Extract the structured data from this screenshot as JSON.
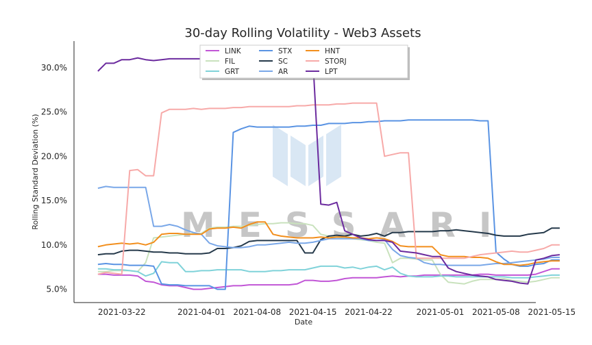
{
  "chart_data": {
    "type": "line",
    "title": "30-day Rolling Volatility - Web3 Assets",
    "xlabel": "Date",
    "ylabel": "Rolling Standard Deviation (%)",
    "ylim": [
      3.5,
      33.0
    ],
    "xlim": [
      "2021-03-16",
      "2021-05-13"
    ],
    "grid": false,
    "legend_position": "top-center",
    "watermark": "MESSARI",
    "x_tick_labels": [
      "2021-03-22",
      "2021-04-01",
      "2021-04-08",
      "2021-04-15",
      "2021-04-22",
      "2021-05-01",
      "2021-05-08",
      "2021-05-15"
    ],
    "y_tick_labels": [
      "5.0%",
      "10.0%",
      "15.0%",
      "20.0%",
      "25.0%",
      "30.0%"
    ],
    "y_tick_values": [
      5,
      10,
      15,
      20,
      25,
      30
    ],
    "x_start": "2021-03-19",
    "series": [
      {
        "name": "LINK",
        "color": "#c155d6",
        "values": [
          6.7,
          6.7,
          6.6,
          6.6,
          6.6,
          6.5,
          5.9,
          5.8,
          5.5,
          5.4,
          5.4,
          5.2,
          5.0,
          5.0,
          5.1,
          5.2,
          5.3,
          5.4,
          5.4,
          5.5,
          5.5,
          5.5,
          5.5,
          5.5,
          5.5,
          5.6,
          6.0,
          6.0,
          5.9,
          5.9,
          6.0,
          6.2,
          6.3,
          6.3,
          6.3,
          6.3,
          6.4,
          6.5,
          6.4,
          6.5,
          6.5,
          6.6,
          6.6,
          6.6,
          6.6,
          6.6,
          6.6,
          6.6,
          6.7,
          6.7,
          6.6,
          6.6,
          6.6,
          6.6,
          6.6,
          6.7,
          7.0,
          7.3,
          7.3
        ]
      },
      {
        "name": "FIL",
        "color": "#c9e2bd",
        "values": [
          7.0,
          7.0,
          7.1,
          7.1,
          7.1,
          7.0,
          8.0,
          10.8,
          10.9,
          11.0,
          11.1,
          11.2,
          11.3,
          11.3,
          11.9,
          12.0,
          12.0,
          12.1,
          12.1,
          12.2,
          12.3,
          12.4,
          12.4,
          12.5,
          12.5,
          12.4,
          12.4,
          12.2,
          11.2,
          11.0,
          10.9,
          10.8,
          10.7,
          10.6,
          10.5,
          10.3,
          10.2,
          8.0,
          8.5,
          8.5,
          8.4,
          8.3,
          8.3,
          6.7,
          5.8,
          5.7,
          5.6,
          5.9,
          6.1,
          6.1,
          6.1,
          6.2,
          6.0,
          5.9,
          5.8,
          5.9,
          6.1,
          6.3,
          6.3
        ]
      },
      {
        "name": "GRT",
        "color": "#7fd2d9",
        "values": [
          7.3,
          7.3,
          7.2,
          7.2,
          7.1,
          7.0,
          6.5,
          6.8,
          8.1,
          8.0,
          8.0,
          7.0,
          7.0,
          7.1,
          7.1,
          7.2,
          7.2,
          7.2,
          7.2,
          7.0,
          7.0,
          7.0,
          7.1,
          7.1,
          7.2,
          7.2,
          7.2,
          7.4,
          7.6,
          7.6,
          7.6,
          7.4,
          7.5,
          7.3,
          7.5,
          7.6,
          7.2,
          7.5,
          6.8,
          6.5,
          6.4,
          6.4,
          6.4,
          6.5,
          6.5,
          6.4,
          6.4,
          6.4,
          6.4,
          6.4,
          6.4,
          6.4,
          6.3,
          6.3,
          6.3,
          6.4,
          6.5,
          6.6,
          6.6
        ]
      },
      {
        "name": "STX",
        "color": "#5993e3",
        "values": [
          7.8,
          7.9,
          7.8,
          7.8,
          7.7,
          7.7,
          7.7,
          7.6,
          5.6,
          5.5,
          5.5,
          5.4,
          5.4,
          5.4,
          5.4,
          5.0,
          5.0,
          22.7,
          23.1,
          23.4,
          23.3,
          23.3,
          23.3,
          23.3,
          23.3,
          23.4,
          23.4,
          23.5,
          23.5,
          23.7,
          23.7,
          23.7,
          23.8,
          23.8,
          23.9,
          23.9,
          24.0,
          24.0,
          24.0,
          24.1,
          24.1,
          24.1,
          24.1,
          24.1,
          24.1,
          24.1,
          24.1,
          24.1,
          24.0,
          24.0,
          9.2,
          8.4,
          7.8,
          7.6,
          7.6,
          7.8,
          7.9,
          8.3,
          8.3
        ]
      },
      {
        "name": "SC",
        "color": "#25394a",
        "values": [
          8.9,
          9.0,
          9.0,
          9.3,
          9.4,
          9.4,
          9.3,
          9.2,
          9.2,
          9.1,
          9.1,
          9.0,
          9.0,
          9.0,
          9.1,
          9.6,
          9.6,
          9.7,
          9.9,
          10.4,
          10.5,
          10.5,
          10.5,
          10.5,
          10.5,
          10.5,
          9.1,
          9.1,
          10.6,
          11.0,
          11.1,
          11.0,
          11.2,
          11.0,
          11.1,
          11.3,
          11.0,
          11.4,
          11.4,
          11.5,
          11.5,
          11.5,
          11.5,
          11.6,
          11.6,
          11.7,
          11.6,
          11.5,
          11.4,
          11.3,
          11.1,
          11.0,
          11.0,
          11.0,
          11.2,
          11.3,
          11.4,
          11.9,
          11.9
        ]
      },
      {
        "name": "AR",
        "color": "#79a7e8",
        "values": [
          16.4,
          16.6,
          16.5,
          16.5,
          16.5,
          16.5,
          16.5,
          12.1,
          12.1,
          12.3,
          12.1,
          11.7,
          11.4,
          11.2,
          10.2,
          9.9,
          9.8,
          9.7,
          9.7,
          9.8,
          10.0,
          10.0,
          10.1,
          10.2,
          10.3,
          10.2,
          10.2,
          10.3,
          10.5,
          10.7,
          10.7,
          10.7,
          10.7,
          10.7,
          10.5,
          10.5,
          10.6,
          9.5,
          8.8,
          8.6,
          8.5,
          8.0,
          7.8,
          7.8,
          7.7,
          7.7,
          7.7,
          7.7,
          7.7,
          7.8,
          7.9,
          7.9,
          8.0,
          8.1,
          8.2,
          8.3,
          8.4,
          8.6,
          8.6
        ]
      },
      {
        "name": "HNT",
        "color": "#f28e1c",
        "values": [
          9.8,
          10.0,
          10.1,
          10.2,
          10.1,
          10.2,
          10.0,
          10.3,
          11.2,
          11.3,
          11.3,
          11.2,
          11.2,
          11.2,
          11.8,
          11.9,
          11.9,
          12.0,
          11.9,
          12.3,
          12.6,
          12.6,
          11.2,
          11.0,
          10.9,
          10.8,
          10.8,
          10.8,
          10.9,
          10.8,
          10.9,
          10.9,
          10.8,
          10.8,
          10.7,
          10.8,
          10.7,
          10.4,
          9.9,
          9.8,
          9.8,
          9.8,
          9.8,
          8.9,
          8.7,
          8.7,
          8.7,
          8.6,
          8.6,
          8.5,
          8.1,
          7.8,
          7.8,
          7.7,
          7.8,
          8.0,
          8.1,
          8.2,
          8.2
        ]
      },
      {
        "name": "STORJ",
        "color": "#f7a9a8",
        "values": [
          6.7,
          6.9,
          6.8,
          6.7,
          18.4,
          18.5,
          17.8,
          17.8,
          24.9,
          25.3,
          25.3,
          25.3,
          25.4,
          25.3,
          25.4,
          25.4,
          25.4,
          25.5,
          25.5,
          25.6,
          25.6,
          25.6,
          25.6,
          25.6,
          25.6,
          25.7,
          25.7,
          25.8,
          25.8,
          25.8,
          25.9,
          25.9,
          26.0,
          26.0,
          26.0,
          26.0,
          20.0,
          20.2,
          20.4,
          20.4,
          8.5,
          8.5,
          8.5,
          8.5,
          8.5,
          8.5,
          8.5,
          8.7,
          8.9,
          9.0,
          9.1,
          9.2,
          9.3,
          9.2,
          9.2,
          9.4,
          9.6,
          10.0,
          10.0
        ]
      },
      {
        "name": "LPT",
        "color": "#6b2a9e",
        "values": [
          29.6,
          30.5,
          30.5,
          30.9,
          30.9,
          31.1,
          30.9,
          30.8,
          30.9,
          31.0,
          31.0,
          31.0,
          31.0,
          31.0,
          31.0,
          31.0,
          31.0,
          31.0,
          31.0,
          31.0,
          31.0,
          31.0,
          31.0,
          31.0,
          31.0,
          31.0,
          31.0,
          31.0,
          14.6,
          14.5,
          14.8,
          11.6,
          11.2,
          10.8,
          10.6,
          10.5,
          10.5,
          10.3,
          9.3,
          9.2,
          9.1,
          8.9,
          8.7,
          8.7,
          7.4,
          7.0,
          6.8,
          6.6,
          6.5,
          6.4,
          6.1,
          6.0,
          5.9,
          5.7,
          5.6,
          8.3,
          8.5,
          8.8,
          8.9
        ]
      }
    ]
  }
}
